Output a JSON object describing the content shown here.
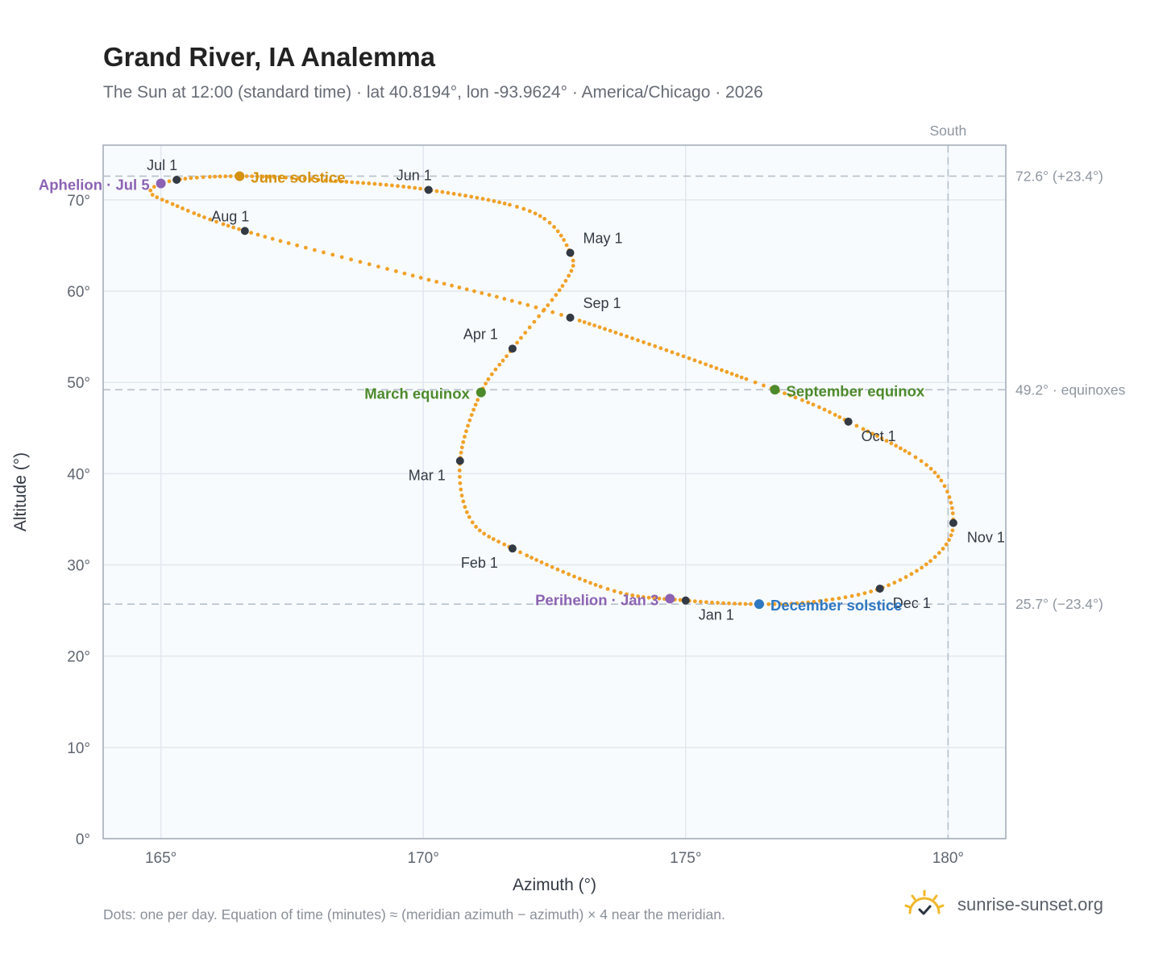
{
  "header": {
    "title": "Grand River, IA Analemma",
    "subtitle": "The Sun at 12:00 (standard time) · lat 40.8194°, lon -93.9624° · America/Chicago · 2026"
  },
  "footer": {
    "note": "Dots: one per day. Equation of time (minutes) ≈ (meridian azimuth − azimuth) × 4 near the meridian.",
    "brand": "sunrise-sunset.org",
    "brand_icon": "sun-check-icon"
  },
  "colors": {
    "path": "#f0a128",
    "month_dot": "#333a44",
    "solstice_june": "#d4920f",
    "equinox": "#4d8a2c",
    "solstice_december": "#2f78c2",
    "apsis": "#8c63b4",
    "ref_line": "#b7c0cb",
    "plot_bg": "#f8fbfd",
    "grid": "#e1e8ef",
    "frame": "#a0aab6"
  },
  "chart_data": {
    "type": "scatter",
    "xlabel": "Azimuth (°)",
    "ylabel": "Altitude (°)",
    "xlim": [
      163.9,
      181.1
    ],
    "ylim": [
      0,
      76
    ],
    "x_ticks": [
      165,
      170,
      175,
      180
    ],
    "x_tick_labels": [
      "165°",
      "170°",
      "175°",
      "180°"
    ],
    "y_ticks": [
      0,
      10,
      20,
      30,
      40,
      50,
      60,
      70
    ],
    "y_tick_labels": [
      "0°",
      "10°",
      "20°",
      "30°",
      "40°",
      "50°",
      "60°",
      "70°"
    ],
    "grid": true,
    "meridian": {
      "azimuth": 180,
      "label": "South"
    },
    "reference_lines": [
      {
        "altitude": 72.6,
        "label": "72.6° (+23.4°)"
      },
      {
        "altitude": 49.2,
        "label": "49.2° · equinoxes"
      },
      {
        "altitude": 25.7,
        "label": "25.7° (−23.4°)"
      }
    ],
    "path_series": {
      "name": "",
      "points": [
        [
          175.0,
          26.1
        ],
        [
          173.6,
          27.2
        ],
        [
          171.7,
          31.8
        ],
        [
          170.9,
          35.0
        ],
        [
          170.7,
          41.4
        ],
        [
          171.1,
          48.9
        ],
        [
          171.7,
          53.7
        ],
        [
          172.7,
          61.0
        ],
        [
          172.8,
          64.2
        ],
        [
          172.1,
          68.6
        ],
        [
          170.1,
          71.1
        ],
        [
          168.0,
          72.2
        ],
        [
          166.5,
          72.6
        ],
        [
          165.3,
          72.2
        ],
        [
          164.8,
          71.0
        ],
        [
          165.2,
          69.6
        ],
        [
          166.6,
          66.6
        ],
        [
          169.8,
          61.7
        ],
        [
          172.8,
          57.1
        ],
        [
          176.7,
          49.2
        ],
        [
          178.1,
          45.7
        ],
        [
          179.7,
          40.4
        ],
        [
          180.1,
          34.6
        ],
        [
          179.7,
          30.6
        ],
        [
          178.7,
          27.4
        ],
        [
          177.5,
          26.0
        ],
        [
          176.4,
          25.7
        ],
        [
          175.0,
          26.1
        ]
      ]
    },
    "months": [
      {
        "label": "Jan 1",
        "azimuth": 175.0,
        "altitude": 26.1
      },
      {
        "label": "Feb 1",
        "azimuth": 171.7,
        "altitude": 31.8
      },
      {
        "label": "Mar 1",
        "azimuth": 170.7,
        "altitude": 41.4
      },
      {
        "label": "Apr 1",
        "azimuth": 171.7,
        "altitude": 53.7
      },
      {
        "label": "May 1",
        "azimuth": 172.8,
        "altitude": 64.2
      },
      {
        "label": "Jun 1",
        "azimuth": 170.1,
        "altitude": 71.1
      },
      {
        "label": "Jul 1",
        "azimuth": 165.3,
        "altitude": 72.2
      },
      {
        "label": "Aug 1",
        "azimuth": 166.6,
        "altitude": 66.6
      },
      {
        "label": "Sep 1",
        "azimuth": 172.8,
        "altitude": 57.1
      },
      {
        "label": "Oct 1",
        "azimuth": 178.1,
        "altitude": 45.7
      },
      {
        "label": "Nov 1",
        "azimuth": 180.1,
        "altitude": 34.6
      },
      {
        "label": "Dec 1",
        "azimuth": 178.7,
        "altitude": 27.4
      }
    ],
    "events": [
      {
        "label": "June solstice",
        "azimuth": 166.5,
        "altitude": 72.6,
        "color": "#d4920f",
        "side": "right"
      },
      {
        "label": "December solstice",
        "azimuth": 176.4,
        "altitude": 25.7,
        "color": "#2f78c2",
        "side": "right"
      },
      {
        "label": "March equinox",
        "azimuth": 171.1,
        "altitude": 48.9,
        "color": "#4d8a2c",
        "side": "left"
      },
      {
        "label": "September equinox",
        "azimuth": 176.7,
        "altitude": 49.2,
        "color": "#4d8a2c",
        "side": "right"
      },
      {
        "label": "Aphelion · Jul 5",
        "azimuth": 165.0,
        "altitude": 71.8,
        "color": "#8c63b4",
        "side": "left"
      },
      {
        "label": "Perihelion · Jan 3",
        "azimuth": 174.7,
        "altitude": 26.3,
        "color": "#8c63b4",
        "side": "left"
      }
    ]
  }
}
